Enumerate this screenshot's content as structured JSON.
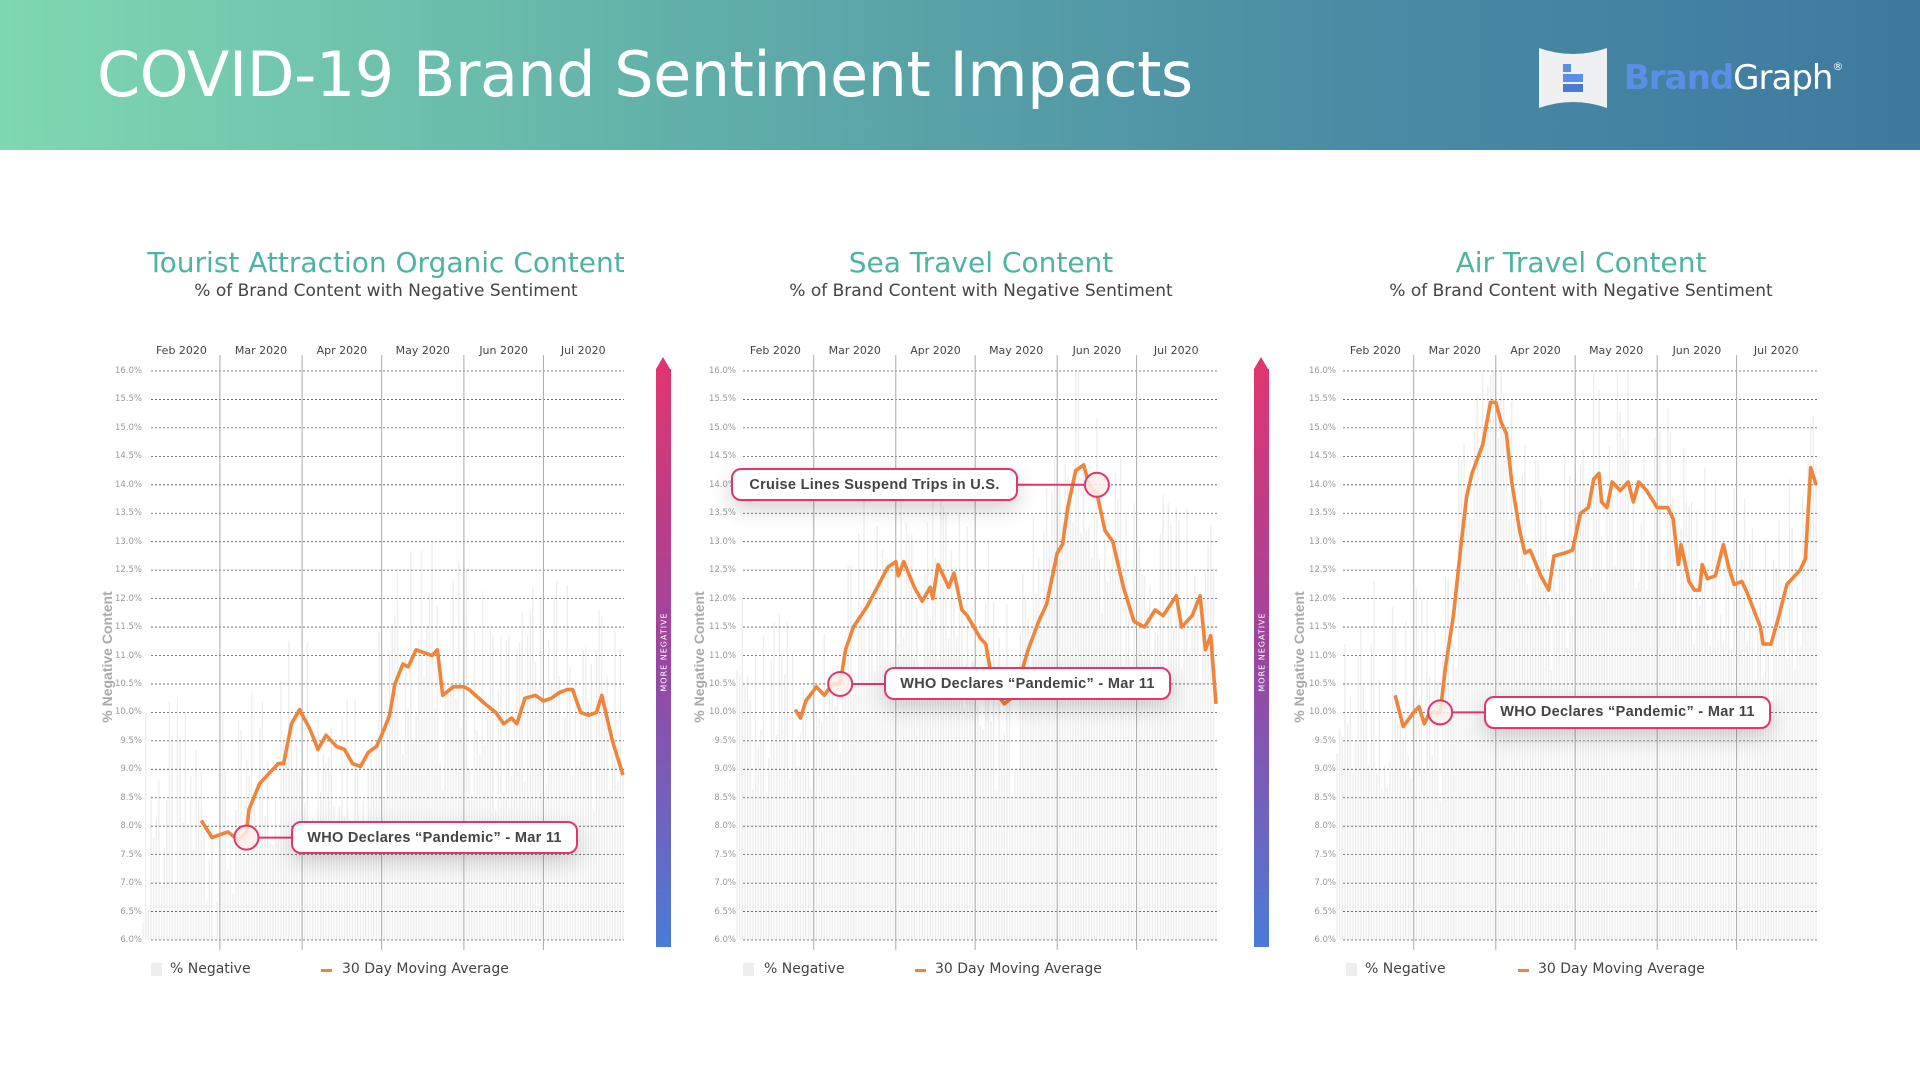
{
  "header": {
    "title": "COVID-19 Brand Sentiment Impacts",
    "logo": {
      "brand": "Brand",
      "graph": "Graph",
      "registered": "®"
    }
  },
  "colors": {
    "line": "#f0843a",
    "bars": "#eeeeee",
    "callout": "#e0356f",
    "title": "#4fb3a3",
    "gradient_top": "#e0356f",
    "gradient_bottom": "#4a7bd8"
  },
  "gradient_label": "MORE NEGATIVE",
  "legend": {
    "bars": "% Negative",
    "line": "30 Day Moving Average"
  },
  "chart_data": [
    {
      "type": "line",
      "title": "Tourist Attraction Organic Content",
      "subtitle": "% of Brand Content with Negative Sentiment",
      "ylabel": "% Negative Content",
      "xlim": [
        "2020-02-01",
        "2020-07-31"
      ],
      "ylim": [
        6.0,
        16.0
      ],
      "yticks": [
        6.0,
        6.5,
        7.0,
        7.5,
        8.0,
        8.5,
        9.0,
        9.5,
        10.0,
        10.5,
        11.0,
        11.5,
        12.0,
        12.5,
        13.0,
        13.5,
        14.0,
        14.5,
        15.0,
        15.5,
        16.0
      ],
      "x_tick_labels": [
        "Feb 2020",
        "Mar 2020",
        "Apr 2020",
        "May 2020",
        "Jun 2020",
        "Jul 2020"
      ],
      "grid": true,
      "series": [
        {
          "name": "30 Day Moving Average",
          "points": [
            [
              "2020-02-23",
              8.1
            ],
            [
              "2020-02-27",
              7.8
            ],
            [
              "2020-03-01",
              7.85
            ],
            [
              "2020-03-04",
              7.9
            ],
            [
              "2020-03-08",
              7.75
            ],
            [
              "2020-03-11",
              7.9
            ],
            [
              "2020-03-12",
              8.3
            ],
            [
              "2020-03-16",
              8.75
            ],
            [
              "2020-03-20",
              8.95
            ],
            [
              "2020-03-23",
              9.1
            ],
            [
              "2020-03-25",
              9.1
            ],
            [
              "2020-03-28",
              9.8
            ],
            [
              "2020-03-31",
              10.05
            ],
            [
              "2020-04-04",
              9.7
            ],
            [
              "2020-04-07",
              9.35
            ],
            [
              "2020-04-10",
              9.6
            ],
            [
              "2020-04-14",
              9.4
            ],
            [
              "2020-04-17",
              9.35
            ],
            [
              "2020-04-20",
              9.1
            ],
            [
              "2020-04-23",
              9.05
            ],
            [
              "2020-04-26",
              9.3
            ],
            [
              "2020-04-29",
              9.4
            ],
            [
              "2020-05-01",
              9.6
            ],
            [
              "2020-05-04",
              9.95
            ],
            [
              "2020-05-06",
              10.5
            ],
            [
              "2020-05-09",
              10.85
            ],
            [
              "2020-05-11",
              10.8
            ],
            [
              "2020-05-14",
              11.1
            ],
            [
              "2020-05-17",
              11.05
            ],
            [
              "2020-05-20",
              11.0
            ],
            [
              "2020-05-22",
              11.1
            ],
            [
              "2020-05-24",
              10.3
            ],
            [
              "2020-05-28",
              10.45
            ],
            [
              "2020-06-01",
              10.45
            ],
            [
              "2020-06-03",
              10.4
            ],
            [
              "2020-06-09",
              10.15
            ],
            [
              "2020-06-13",
              10.0
            ],
            [
              "2020-06-16",
              9.8
            ],
            [
              "2020-06-19",
              9.9
            ],
            [
              "2020-06-21",
              9.8
            ],
            [
              "2020-06-24",
              10.25
            ],
            [
              "2020-06-28",
              10.3
            ],
            [
              "2020-07-01",
              10.2
            ],
            [
              "2020-07-04",
              10.25
            ],
            [
              "2020-07-07",
              10.35
            ],
            [
              "2020-07-10",
              10.4
            ],
            [
              "2020-07-12",
              10.4
            ],
            [
              "2020-07-15",
              10.0
            ],
            [
              "2020-07-18",
              9.95
            ],
            [
              "2020-07-21",
              10.0
            ],
            [
              "2020-07-23",
              10.3
            ],
            [
              "2020-07-27",
              9.5
            ],
            [
              "2020-07-31",
              8.9
            ]
          ]
        }
      ],
      "annotations": [
        {
          "label": "WHO Declares “Pandemic” - Mar 11",
          "date": "2020-03-11",
          "value": 7.8
        }
      ]
    },
    {
      "type": "line",
      "title": "Sea Travel Content",
      "subtitle": "% of Brand Content with Negative Sentiment",
      "ylabel": "% Negative Content",
      "xlim": [
        "2020-02-01",
        "2020-07-31"
      ],
      "ylim": [
        6.0,
        16.0
      ],
      "yticks": [
        6.0,
        6.5,
        7.0,
        7.5,
        8.0,
        8.5,
        9.0,
        9.5,
        10.0,
        10.5,
        11.0,
        11.5,
        12.0,
        12.5,
        13.0,
        13.5,
        14.0,
        14.5,
        15.0,
        15.5,
        16.0
      ],
      "x_tick_labels": [
        "Feb 2020",
        "Mar 2020",
        "Apr 2020",
        "May 2020",
        "Jun 2020",
        "Jul 2020"
      ],
      "grid": true,
      "series": [
        {
          "name": "30 Day Moving Average",
          "points": [
            [
              "2020-02-23",
              10.05
            ],
            [
              "2020-02-25",
              9.9
            ],
            [
              "2020-02-27",
              10.2
            ],
            [
              "2020-03-02",
              10.45
            ],
            [
              "2020-03-05",
              10.3
            ],
            [
              "2020-03-08",
              10.5
            ],
            [
              "2020-03-11",
              10.5
            ],
            [
              "2020-03-13",
              11.1
            ],
            [
              "2020-03-16",
              11.5
            ],
            [
              "2020-03-21",
              11.85
            ],
            [
              "2020-03-25",
              12.2
            ],
            [
              "2020-03-29",
              12.55
            ],
            [
              "2020-04-01",
              12.65
            ],
            [
              "2020-04-02",
              12.4
            ],
            [
              "2020-04-04",
              12.65
            ],
            [
              "2020-04-08",
              12.2
            ],
            [
              "2020-04-11",
              11.95
            ],
            [
              "2020-04-14",
              12.2
            ],
            [
              "2020-04-15",
              12.0
            ],
            [
              "2020-04-17",
              12.6
            ],
            [
              "2020-04-21",
              12.2
            ],
            [
              "2020-04-23",
              12.45
            ],
            [
              "2020-04-26",
              11.8
            ],
            [
              "2020-04-28",
              11.7
            ],
            [
              "2020-05-03",
              11.3
            ],
            [
              "2020-05-05",
              11.2
            ],
            [
              "2020-05-08",
              10.4
            ],
            [
              "2020-05-12",
              10.15
            ],
            [
              "2020-05-16",
              10.3
            ],
            [
              "2020-05-21",
              11.1
            ],
            [
              "2020-05-25",
              11.6
            ],
            [
              "2020-05-28",
              11.9
            ],
            [
              "2020-06-01",
              12.8
            ],
            [
              "2020-06-03",
              12.95
            ],
            [
              "2020-06-05",
              13.6
            ],
            [
              "2020-06-08",
              14.25
            ],
            [
              "2020-06-11",
              14.35
            ],
            [
              "2020-06-13",
              14.0
            ],
            [
              "2020-06-16",
              13.85
            ],
            [
              "2020-06-19",
              13.2
            ],
            [
              "2020-06-22",
              13.0
            ],
            [
              "2020-06-26",
              12.2
            ],
            [
              "2020-06-30",
              11.6
            ],
            [
              "2020-07-04",
              11.5
            ],
            [
              "2020-07-08",
              11.8
            ],
            [
              "2020-07-11",
              11.7
            ],
            [
              "2020-07-16",
              12.05
            ],
            [
              "2020-07-18",
              11.5
            ],
            [
              "2020-07-22",
              11.7
            ],
            [
              "2020-07-25",
              12.05
            ],
            [
              "2020-07-27",
              11.1
            ],
            [
              "2020-07-29",
              11.35
            ],
            [
              "2020-07-31",
              10.15
            ]
          ]
        }
      ],
      "annotations": [
        {
          "label": "Cruise Lines Suspend Trips in U.S.",
          "date": "2020-06-16",
          "value": 14.0
        },
        {
          "label": "WHO Declares “Pandemic” - Mar 11",
          "date": "2020-03-11",
          "value": 10.5
        }
      ]
    },
    {
      "type": "line",
      "title": "Air Travel Content",
      "subtitle": "% of Brand Content with Negative Sentiment",
      "ylabel": "% Negative Content",
      "xlim": [
        "2020-02-01",
        "2020-07-31"
      ],
      "ylim": [
        6.0,
        16.0
      ],
      "yticks": [
        6.0,
        6.5,
        7.0,
        7.5,
        8.0,
        8.5,
        9.0,
        9.5,
        10.0,
        10.5,
        11.0,
        11.5,
        12.0,
        12.5,
        13.0,
        13.5,
        14.0,
        14.5,
        15.0,
        15.5,
        16.0
      ],
      "x_tick_labels": [
        "Feb 2020",
        "Mar 2020",
        "Apr 2020",
        "May 2020",
        "Jun 2020",
        "Jul 2020"
      ],
      "grid": true,
      "series": [
        {
          "name": "30 Day Moving Average",
          "points": [
            [
              "2020-02-23",
              10.3
            ],
            [
              "2020-02-26",
              9.75
            ],
            [
              "2020-03-01",
              10.0
            ],
            [
              "2020-03-03",
              10.1
            ],
            [
              "2020-03-05",
              9.8
            ],
            [
              "2020-03-07",
              10.0
            ],
            [
              "2020-03-11",
              10.0
            ],
            [
              "2020-03-13",
              10.8
            ],
            [
              "2020-03-16",
              11.7
            ],
            [
              "2020-03-19",
              13.0
            ],
            [
              "2020-03-21",
              13.8
            ],
            [
              "2020-03-23",
              14.2
            ],
            [
              "2020-03-27",
              14.7
            ],
            [
              "2020-03-30",
              15.45
            ],
            [
              "2020-04-01",
              15.45
            ],
            [
              "2020-04-03",
              15.1
            ],
            [
              "2020-04-05",
              14.9
            ],
            [
              "2020-04-07",
              14.05
            ],
            [
              "2020-04-10",
              13.2
            ],
            [
              "2020-04-12",
              12.8
            ],
            [
              "2020-04-14",
              12.85
            ],
            [
              "2020-04-18",
              12.4
            ],
            [
              "2020-04-21",
              12.15
            ],
            [
              "2020-04-23",
              12.75
            ],
            [
              "2020-04-27",
              12.8
            ],
            [
              "2020-04-30",
              12.85
            ],
            [
              "2020-05-03",
              13.5
            ],
            [
              "2020-05-06",
              13.6
            ],
            [
              "2020-05-08",
              14.1
            ],
            [
              "2020-05-10",
              14.2
            ],
            [
              "2020-05-11",
              13.7
            ],
            [
              "2020-05-13",
              13.6
            ],
            [
              "2020-05-15",
              14.05
            ],
            [
              "2020-05-18",
              13.9
            ],
            [
              "2020-05-21",
              14.05
            ],
            [
              "2020-05-23",
              13.7
            ],
            [
              "2020-05-25",
              14.05
            ],
            [
              "2020-05-28",
              13.9
            ],
            [
              "2020-06-01",
              13.6
            ],
            [
              "2020-06-05",
              13.6
            ],
            [
              "2020-06-07",
              13.4
            ],
            [
              "2020-06-09",
              12.6
            ],
            [
              "2020-06-10",
              12.95
            ],
            [
              "2020-06-13",
              12.3
            ],
            [
              "2020-06-15",
              12.15
            ],
            [
              "2020-06-17",
              12.15
            ],
            [
              "2020-06-18",
              12.6
            ],
            [
              "2020-06-20",
              12.35
            ],
            [
              "2020-06-23",
              12.4
            ],
            [
              "2020-06-26",
              12.95
            ],
            [
              "2020-06-28",
              12.55
            ],
            [
              "2020-06-30",
              12.25
            ],
            [
              "2020-07-03",
              12.3
            ],
            [
              "2020-07-05",
              12.1
            ],
            [
              "2020-07-10",
              11.5
            ],
            [
              "2020-07-11",
              11.2
            ],
            [
              "2020-07-14",
              11.2
            ],
            [
              "2020-07-17",
              11.7
            ],
            [
              "2020-07-20",
              12.25
            ],
            [
              "2020-07-23",
              12.4
            ],
            [
              "2020-07-25",
              12.5
            ],
            [
              "2020-07-27",
              12.7
            ],
            [
              "2020-07-29",
              14.3
            ],
            [
              "2020-07-31",
              14.0
            ]
          ]
        }
      ],
      "annotations": [
        {
          "label": "WHO Declares “Pandemic” - Mar 11",
          "date": "2020-03-11",
          "value": 10.0
        }
      ]
    }
  ]
}
